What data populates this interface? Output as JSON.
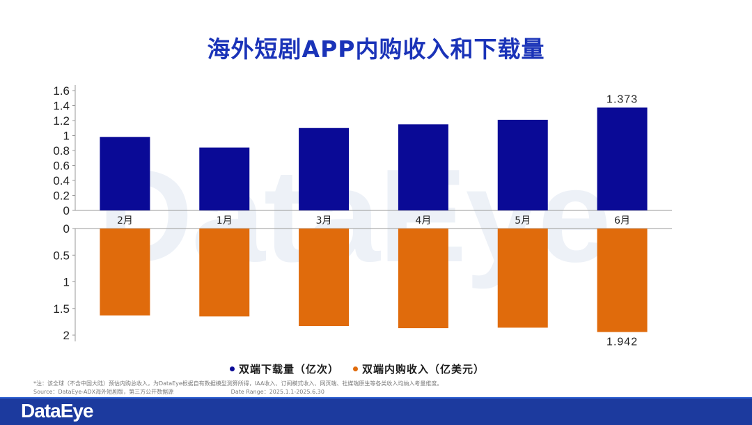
{
  "watermark": "DataEye",
  "title": "海外短剧APP内购收入和下载量",
  "chart_data": {
    "type": "bar",
    "categories": [
      "2月",
      "1月",
      "3月",
      "4月",
      "5月",
      "6月"
    ],
    "top": {
      "series_name": "双端下载量（亿次）",
      "color": "#0a0a96",
      "values": [
        0.98,
        0.84,
        1.1,
        1.15,
        1.21,
        1.373
      ],
      "ylim": [
        0,
        1.6
      ],
      "ticks": [
        "0",
        "0.2",
        "0.4",
        "0.6",
        "0.8",
        "1",
        "1.2",
        "1.4",
        "1.6"
      ],
      "data_labels": [
        null,
        null,
        null,
        null,
        null,
        "1.373"
      ]
    },
    "bottom": {
      "series_name": "双端内购收入（亿美元）",
      "color": "#e06b0c",
      "values": [
        1.63,
        1.65,
        1.83,
        1.87,
        1.86,
        1.942
      ],
      "ylim": [
        0,
        2
      ],
      "ticks": [
        "0",
        "0.5",
        "1",
        "1.5",
        "2"
      ],
      "data_labels": [
        null,
        null,
        null,
        null,
        null,
        "1.942"
      ]
    },
    "grid": false,
    "legend_position": "bottom"
  },
  "legend": [
    {
      "label": "双端下载量（亿次）",
      "color": "#0a0a96"
    },
    {
      "label": "双端内购收入（亿美元）",
      "color": "#e06b0c"
    }
  ],
  "notes": {
    "line1": "*注：该全球（不含中国大陆）预估内购总收入，为DataEye根据自有数据模型测算所得，IAA收入、订阅模式收入、网页端、社媒端原生等各类收入均纳入考量维度。",
    "line2_source": "Source：DataEye-ADX海外短剧版，第三方公开数据源",
    "line2_range": "Date Range：2025.1.1-2025.6.30"
  },
  "footer": {
    "logo": "DataEye"
  }
}
